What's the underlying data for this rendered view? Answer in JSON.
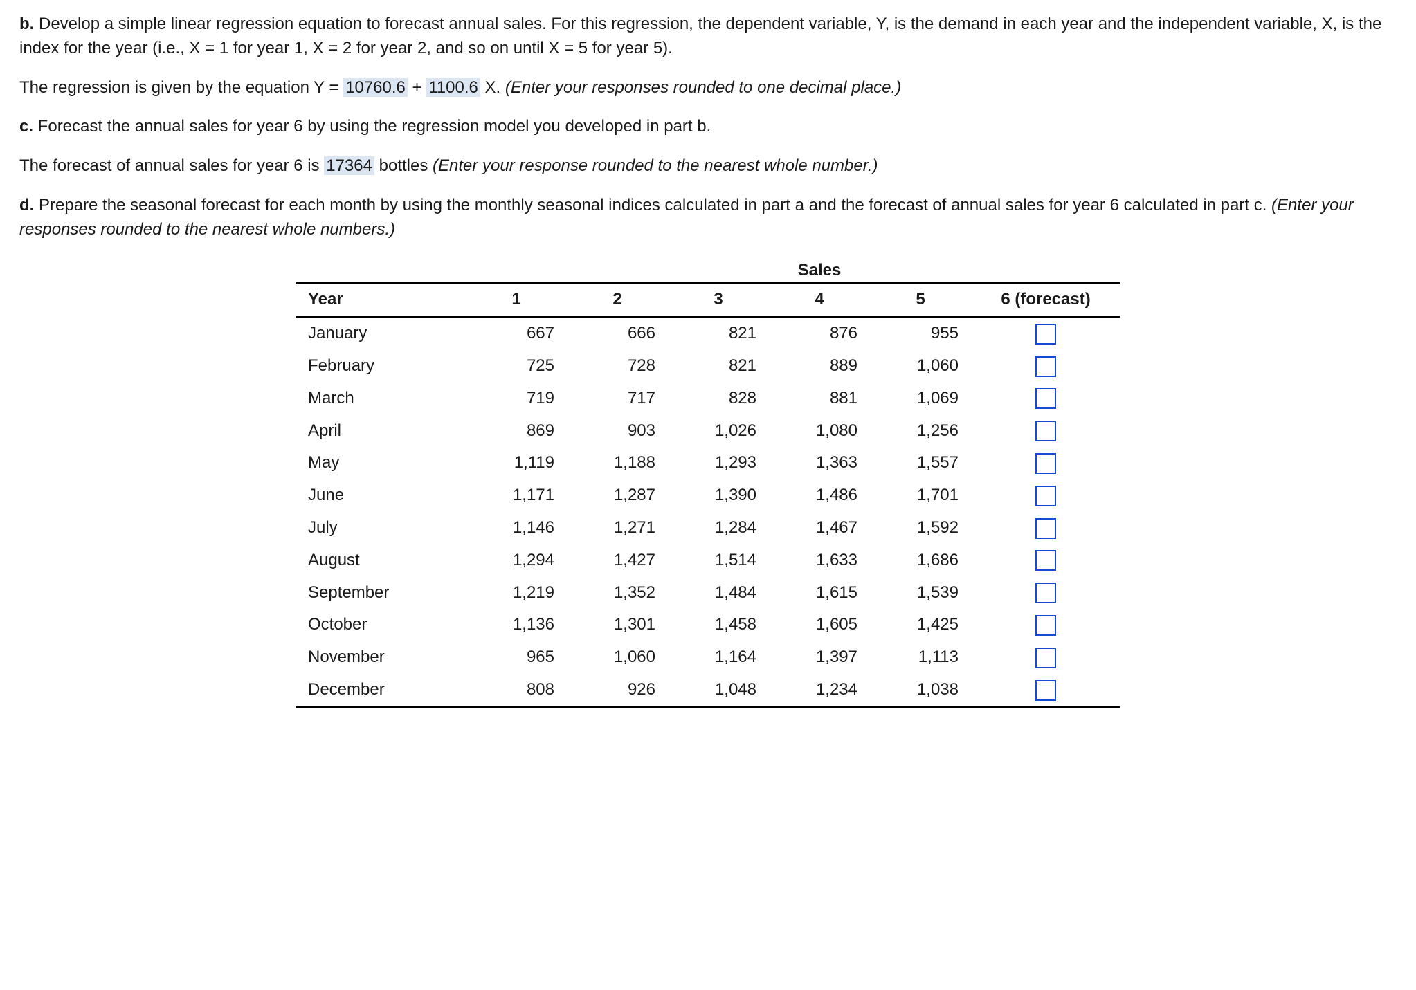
{
  "partB": {
    "label": "b.",
    "text1": " Develop a simple linear regression equation to forecast annual sales. For this regression, the dependent variable, Y, is the demand in each year and the independent variable, X, is the index for the year (i.e., X = 1 for year 1, X = 2 for year 2, and so on until X = 5 for year 5).",
    "eqPrefix": "The regression is given by the equation Y = ",
    "intercept": "10760.6",
    "plus": " + ",
    "slope": "1100.6",
    "afterSlope": " X. ",
    "hint": "(Enter your responses rounded to one decimal place.)"
  },
  "partC": {
    "label": "c.",
    "text1": " Forecast the annual sales for year 6 by using the regression model you developed in part b.",
    "forecastPrefix": "The forecast of annual sales for year 6 is ",
    "forecastValue": "17364",
    "forecastSuffix": " bottles ",
    "hint": "(Enter your response rounded to the nearest whole number.)"
  },
  "partD": {
    "label": "d.",
    "text1": " Prepare the seasonal forecast for each month by using the monthly seasonal indices calculated in part a and the forecast of annual sales for year 6 calculated in part c. ",
    "hint": "(Enter your responses rounded to the nearest whole numbers.)"
  },
  "table": {
    "salesHeader": "Sales",
    "yearLabel": "Year",
    "yearCols": [
      "1",
      "2",
      "3",
      "4",
      "5"
    ],
    "forecastCol": "6 (forecast)",
    "months": [
      "January",
      "February",
      "March",
      "April",
      "May",
      "June",
      "July",
      "August",
      "September",
      "October",
      "November",
      "December"
    ],
    "data": [
      [
        "667",
        "666",
        "821",
        "876",
        "955"
      ],
      [
        "725",
        "728",
        "821",
        "889",
        "1,060"
      ],
      [
        "719",
        "717",
        "828",
        "881",
        "1,069"
      ],
      [
        "869",
        "903",
        "1,026",
        "1,080",
        "1,256"
      ],
      [
        "1,119",
        "1,188",
        "1,293",
        "1,363",
        "1,557"
      ],
      [
        "1,171",
        "1,287",
        "1,390",
        "1,486",
        "1,701"
      ],
      [
        "1,146",
        "1,271",
        "1,284",
        "1,467",
        "1,592"
      ],
      [
        "1,294",
        "1,427",
        "1,514",
        "1,633",
        "1,686"
      ],
      [
        "1,219",
        "1,352",
        "1,484",
        "1,615",
        "1,539"
      ],
      [
        "1,136",
        "1,301",
        "1,458",
        "1,605",
        "1,425"
      ],
      [
        "965",
        "1,060",
        "1,164",
        "1,397",
        "1,113"
      ],
      [
        "808",
        "926",
        "1,048",
        "1,234",
        "1,038"
      ]
    ],
    "style": {
      "borderColor": "#000000",
      "inputBorderColor": "#1549d6",
      "highlightBg": "#dce6f2",
      "fontSizePx": 24
    }
  }
}
